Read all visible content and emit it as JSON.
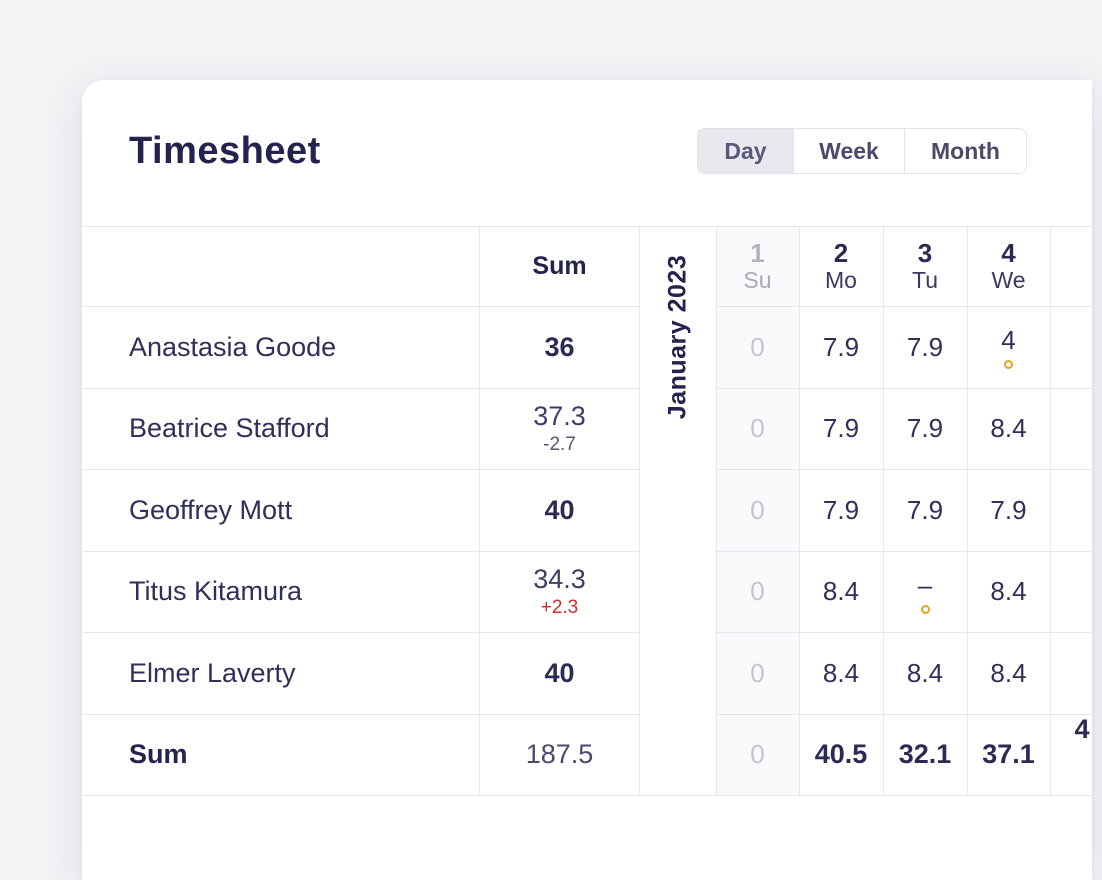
{
  "title": "Timesheet",
  "view_toggle": {
    "options": [
      "Day",
      "Week",
      "Month"
    ],
    "selected": "Day"
  },
  "month_label": "January 2023",
  "sum_header": "Sum",
  "days": [
    {
      "num": "1",
      "wd": "Su",
      "weekend": true
    },
    {
      "num": "2",
      "wd": "Mo"
    },
    {
      "num": "3",
      "wd": "Tu"
    },
    {
      "num": "4",
      "wd": "We"
    }
  ],
  "rows": [
    {
      "name": "Anastasia Goode",
      "sum": "36",
      "delta": "",
      "values": [
        "0",
        "7.9",
        "7.9",
        "4"
      ],
      "markers": [
        false,
        false,
        false,
        true
      ]
    },
    {
      "name": "Beatrice Stafford",
      "sum": "37.3",
      "delta": "-2.7",
      "values": [
        "0",
        "7.9",
        "7.9",
        "8.4"
      ],
      "markers": [
        false,
        false,
        false,
        false
      ]
    },
    {
      "name": "Geoffrey Mott",
      "sum": "40",
      "delta": "",
      "values": [
        "0",
        "7.9",
        "7.9",
        "7.9"
      ],
      "markers": [
        false,
        false,
        false,
        false
      ]
    },
    {
      "name": "Titus Kitamura",
      "sum": "34.3",
      "delta": "+2.3",
      "values": [
        "0",
        "8.4",
        "–",
        "8.4"
      ],
      "markers": [
        false,
        false,
        true,
        false
      ]
    },
    {
      "name": "Elmer Laverty",
      "sum": "40",
      "delta": "",
      "values": [
        "0",
        "8.4",
        "8.4",
        "8.4"
      ],
      "markers": [
        false,
        false,
        false,
        false
      ]
    }
  ],
  "totals": {
    "label": "Sum",
    "sum": "187.5",
    "values": [
      "0",
      "40.5",
      "32.1",
      "37.1"
    ],
    "next_partial": "4"
  },
  "colors": {
    "marker": "#e5a521",
    "negative_delta": "#d42a2a",
    "title": "#23234e"
  }
}
